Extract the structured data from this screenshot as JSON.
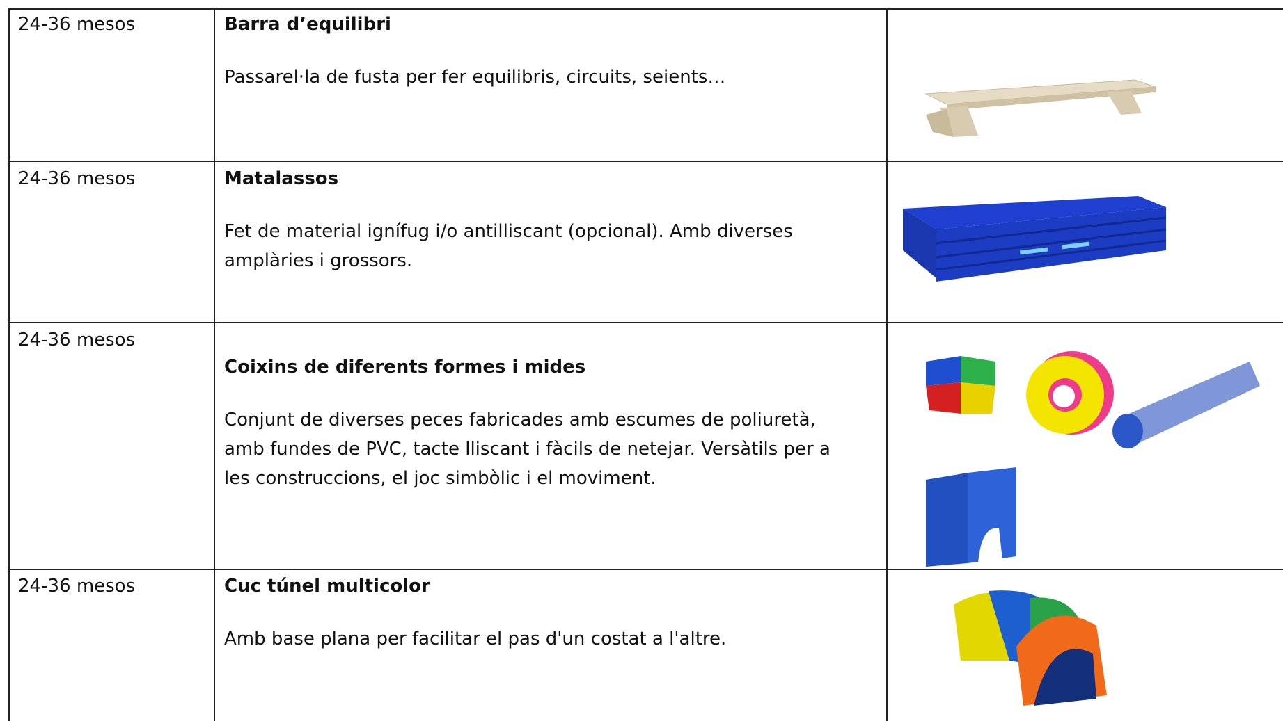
{
  "table": {
    "rows": [
      {
        "age": "24-36 mesos",
        "title": "Barra d’equilibri",
        "description": "Passarel·la de fusta per fer equilibris, circuits, seients…"
      },
      {
        "age": "24-36 mesos",
        "title": "Matalassos",
        "description": "Fet de material ignífug i/o antilliscant (opcional). Amb diverses amplàries i grossors."
      },
      {
        "age": "24-36 mesos",
        "title": "Coixins de diferents formes i mides",
        "description": "Conjunt de diverses peces fabricades amb escumes de poliuretà, amb fundes de PVC, tacte lliscant i fàcils de netejar. Versàtils per a les construccions, el joc simbòlic i el moviment."
      },
      {
        "age": "24-36 mesos",
        "title": "Cuc túnel multicolor",
        "description": "Amb base plana per facilitar el pas d'un costat a l'altre."
      }
    ]
  }
}
